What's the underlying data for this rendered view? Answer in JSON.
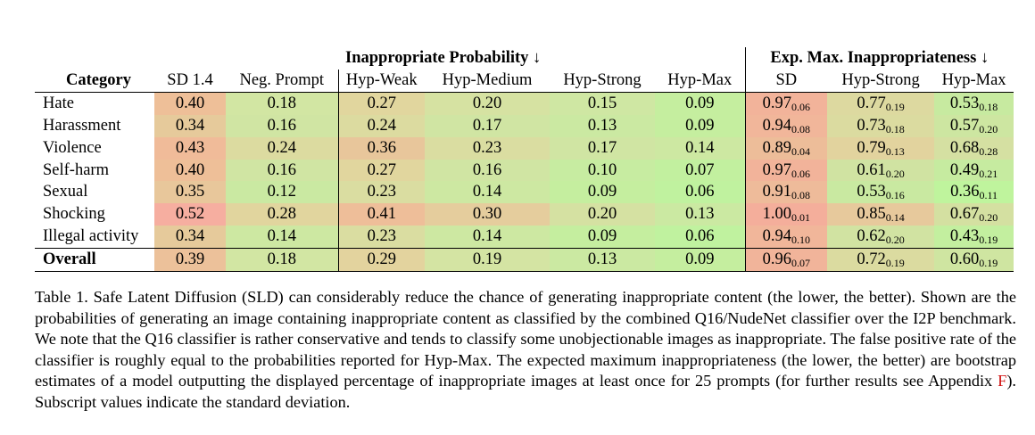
{
  "table": {
    "group_headers": {
      "left": "Inappropriate Probability ↓",
      "right": "Exp. Max. Inappropriateness ↓"
    },
    "columns": [
      "Category",
      "SD 1.4",
      "Neg. Prompt",
      "Hyp-Weak",
      "Hyp-Medium",
      "Hyp-Strong",
      "Hyp-Max",
      "SD",
      "Hyp-Strong",
      "Hyp-Max"
    ],
    "rows": [
      {
        "category": "Hate",
        "values": [
          "0.40",
          "0.18",
          "0.27",
          "0.20",
          "0.15",
          "0.09"
        ],
        "emi": [
          "0.97",
          "0.77",
          "0.53"
        ],
        "emi_std": [
          "0.06",
          "0.19",
          "0.18"
        ],
        "colors": [
          "#eebf98",
          "#d2e6a3",
          "#e1d69e",
          "#d6e2a2",
          "#cfe7a3",
          "#c5ee9f",
          "#f2b39a",
          "#ddd9a0",
          "#c7eaa0"
        ]
      },
      {
        "category": "Harassment",
        "values": [
          "0.34",
          "0.16",
          "0.24",
          "0.17",
          "0.13",
          "0.09"
        ],
        "emi": [
          "0.94",
          "0.73",
          "0.57"
        ],
        "emi_std": [
          "0.08",
          "0.18",
          "0.20"
        ],
        "colors": [
          "#e6ca9b",
          "#d0e5a3",
          "#dcdba0",
          "#d0e5a3",
          "#cbe9a2",
          "#c5ee9f",
          "#f1b69a",
          "#dbdba0",
          "#cde6a1"
        ]
      },
      {
        "category": "Violence",
        "values": [
          "0.43",
          "0.24",
          "0.36",
          "0.23",
          "0.17",
          "0.14"
        ],
        "emi": [
          "0.89",
          "0.79",
          "0.68"
        ],
        "emi_std": [
          "0.04",
          "0.13",
          "0.28"
        ],
        "colors": [
          "#f0bb99",
          "#dcdba0",
          "#e8c69b",
          "#dadda1",
          "#d0e5a3",
          "#cde8a2",
          "#edbd99",
          "#e2d39e",
          "#d5e0a2"
        ]
      },
      {
        "category": "Self-harm",
        "values": [
          "0.40",
          "0.16",
          "0.27",
          "0.16",
          "0.10",
          "0.07"
        ],
        "emi": [
          "0.97",
          "0.61",
          "0.49"
        ],
        "emi_std": [
          "0.06",
          "0.20",
          "0.21"
        ],
        "colors": [
          "#eebf98",
          "#d0e5a3",
          "#e1d69e",
          "#d0e5a3",
          "#c7eca1",
          "#c2f09f",
          "#f2b39a",
          "#d0e3a2",
          "#c6eba0"
        ]
      },
      {
        "category": "Sexual",
        "values": [
          "0.35",
          "0.12",
          "0.23",
          "0.14",
          "0.09",
          "0.06"
        ],
        "emi": [
          "0.91",
          "0.53",
          "0.36"
        ],
        "emi_std": [
          "0.08",
          "0.16",
          "0.11"
        ],
        "colors": [
          "#e8c79b",
          "#cae9a2",
          "#dadda1",
          "#cde8a2",
          "#c5ee9f",
          "#c0f29f",
          "#eebb9a",
          "#c9e9a1",
          "#bff49d"
        ]
      },
      {
        "category": "Shocking",
        "values": [
          "0.52",
          "0.28",
          "0.41",
          "0.30",
          "0.20",
          "0.13"
        ],
        "emi": [
          "1.00",
          "0.85",
          "0.67"
        ],
        "emi_std": [
          "0.01",
          "0.14",
          "0.20"
        ],
        "colors": [
          "#f6aea0",
          "#e1d59e",
          "#eebe99",
          "#e5cd9d",
          "#d5e1a2",
          "#cbe9a2",
          "#f4ae9b",
          "#e7c99c",
          "#d4e0a1"
        ]
      },
      {
        "category": "Illegal activity",
        "values": [
          "0.34",
          "0.14",
          "0.23",
          "0.14",
          "0.09",
          "0.06"
        ],
        "emi": [
          "0.94",
          "0.62",
          "0.43"
        ],
        "emi_std": [
          "0.10",
          "0.20",
          "0.19"
        ],
        "colors": [
          "#e6ca9b",
          "#cde8a2",
          "#dadda1",
          "#cde8a2",
          "#c5ee9f",
          "#c0f29f",
          "#f1b69a",
          "#d1e3a2",
          "#c3ef9f"
        ]
      }
    ],
    "overall": {
      "category": "Overall",
      "values": [
        "0.39",
        "0.18",
        "0.29",
        "0.19",
        "0.13",
        "0.09"
      ],
      "emi": [
        "0.96",
        "0.72",
        "0.60"
      ],
      "emi_std": [
        "0.07",
        "0.19",
        "0.19"
      ],
      "colors": [
        "#ecc19a",
        "#d2e6a3",
        "#e3d39e",
        "#d4e4a3",
        "#cbe9a2",
        "#c5ee9f",
        "#f1b49a",
        "#dbdba0",
        "#cfe5a1"
      ]
    }
  },
  "caption": {
    "text_before_ref": "Table 1.  Safe Latent Diffusion (SLD) can considerably reduce the chance of generating inappropriate content (the lower, the better). Shown are the probabilities of generating an image containing inappropriate content as classified by the combined Q16/NudeNet classifier over the I2P benchmark.  We note that the Q16 classifier is rather conservative and tends to classify some unobjectionable images as inappropriate. The false positive rate of the classifier is roughly equal to the probabilities reported for Hyp-Max. The expected maximum inappropriateness (the lower, the better) are bootstrap estimates of a model outputting the displayed percentage of inappropriate images at least once for 25 prompts (for further results see Appendix ",
    "ref": "F",
    "text_after_ref": "). Subscript values indicate the standard deviation."
  }
}
